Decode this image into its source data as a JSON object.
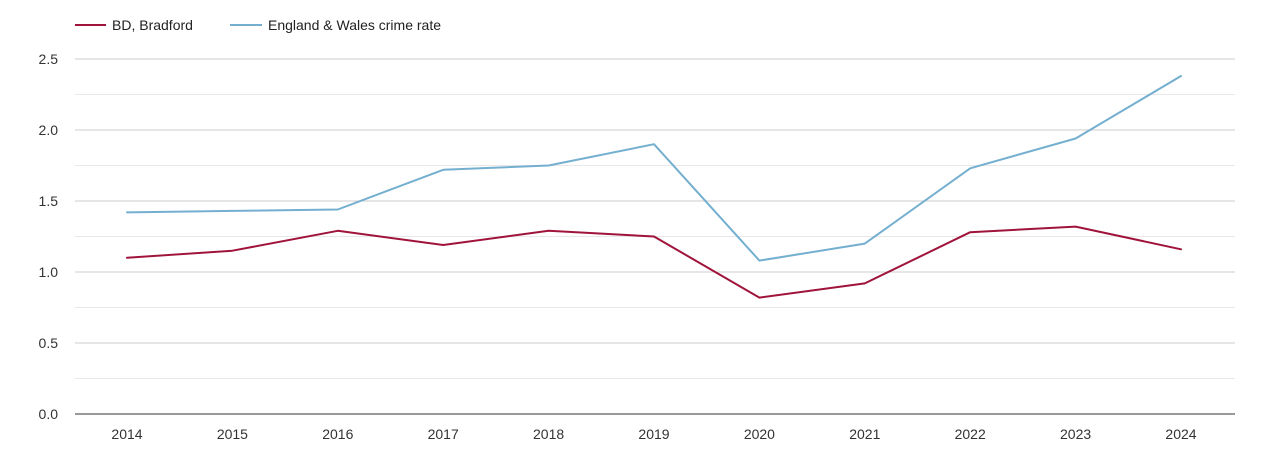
{
  "colors": {
    "series_bradford": "#a0133b",
    "series_england": "#74afd0",
    "grid_major": "#cccccc",
    "grid_minor": "#e8e8e8",
    "axis": "#333333"
  },
  "chart_data": {
    "type": "line",
    "title": "",
    "xlabel": "",
    "ylabel": "",
    "x": [
      "2014",
      "2015",
      "2016",
      "2017",
      "2018",
      "2019",
      "2020",
      "2021",
      "2022",
      "2023",
      "2024"
    ],
    "ylim": [
      0,
      2.5
    ],
    "yticks": [
      "0.0",
      "0.5",
      "1.0",
      "1.5",
      "2.0",
      "2.5"
    ],
    "ytick_values": [
      0,
      0.5,
      1.0,
      1.5,
      2.0,
      2.5
    ],
    "grid": true,
    "legend_position": "top-left",
    "series": [
      {
        "name": "BD, Bradford",
        "color": "#a0133b",
        "values": [
          1.1,
          1.15,
          1.29,
          1.19,
          1.29,
          1.25,
          0.82,
          0.92,
          1.28,
          1.32,
          1.16
        ]
      },
      {
        "name": "England & Wales crime rate",
        "color": "#74afd0",
        "values": [
          1.42,
          1.43,
          1.44,
          1.72,
          1.75,
          1.9,
          1.08,
          1.2,
          1.73,
          1.94,
          2.38
        ]
      }
    ]
  }
}
